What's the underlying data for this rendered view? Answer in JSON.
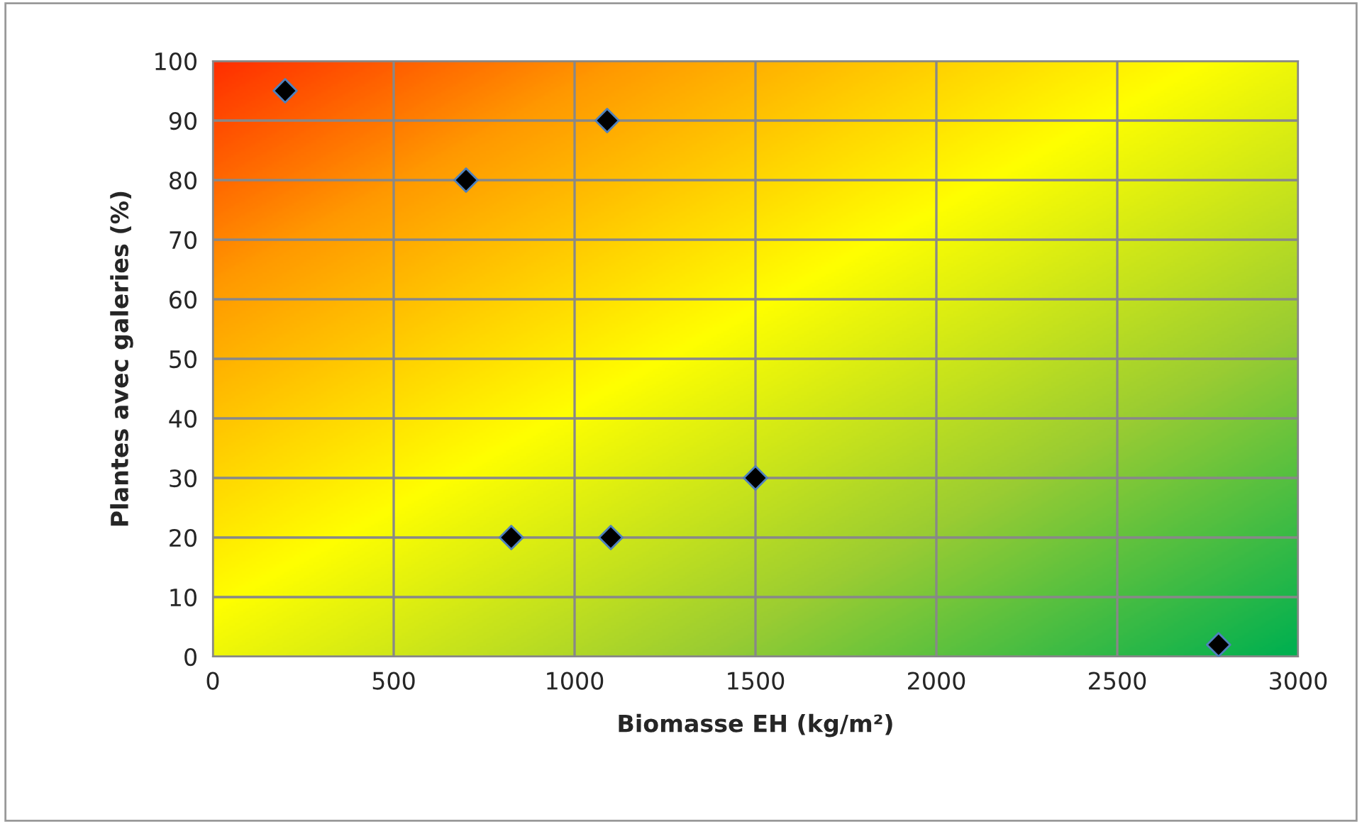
{
  "chart_data": {
    "type": "scatter",
    "xlabel": "Biomasse EH (kg/m²)",
    "ylabel": "Plantes avec galeries (%)",
    "x": [
      200,
      700,
      1090,
      825,
      1100,
      1500,
      2780
    ],
    "series": [
      {
        "color": "#000000",
        "values": [
          95,
          80,
          90,
          20,
          20,
          30,
          2
        ]
      }
    ],
    "xlim": [
      0,
      3000
    ],
    "xticks": [
      0,
      500,
      1000,
      1500,
      2000,
      2500,
      3000
    ],
    "ylim": [
      0,
      100
    ],
    "yticks": [
      0,
      10,
      20,
      30,
      40,
      50,
      60,
      70,
      80,
      90,
      100
    ],
    "grid": true,
    "marker": "diamond",
    "legend": false
  }
}
